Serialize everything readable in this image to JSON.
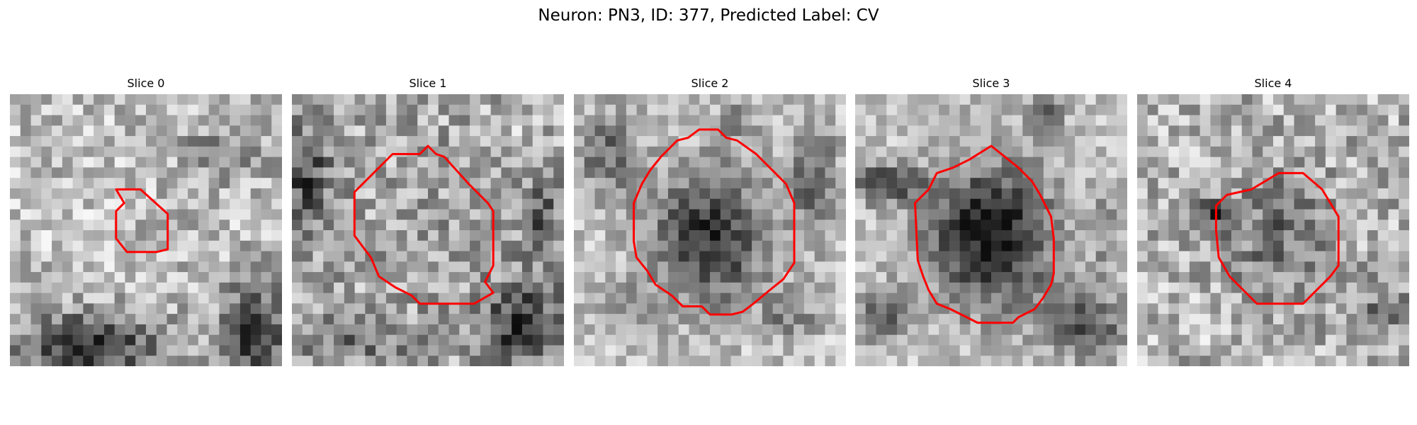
{
  "figure": {
    "title": "Neuron: PN3, ID: 377, Predicted Label: CV",
    "contour_color": "#ff0000",
    "panels": [
      {
        "title": "Slice 0"
      },
      {
        "title": "Slice 1"
      },
      {
        "title": "Slice 2"
      },
      {
        "title": "Slice 3"
      },
      {
        "title": "Slice 4"
      }
    ]
  }
}
